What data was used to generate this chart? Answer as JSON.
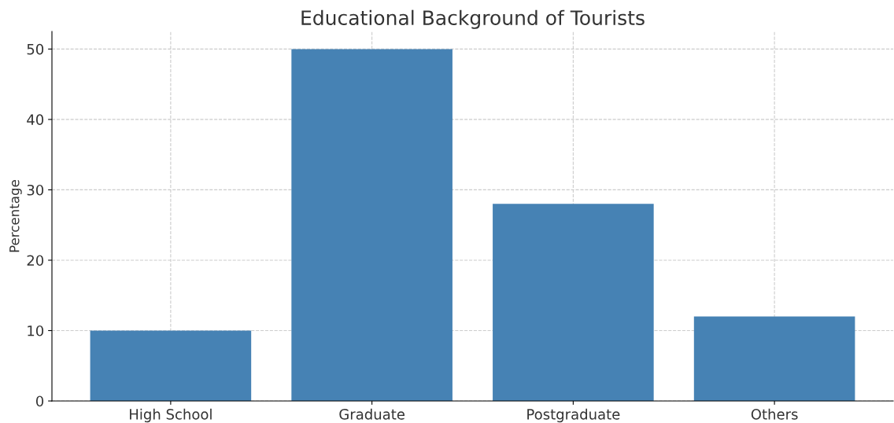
{
  "chart_data": {
    "type": "bar",
    "title": "Educational Background of Tourists",
    "ylabel": "Percentage",
    "categories": [
      "High School",
      "Graduate",
      "Postgraduate",
      "Others"
    ],
    "values": [
      10,
      50,
      28,
      12
    ],
    "color": "#4682b4",
    "ylim": [
      0,
      52.5
    ],
    "yticks": [
      0,
      10,
      20,
      30,
      40,
      50
    ],
    "grid": true
  }
}
